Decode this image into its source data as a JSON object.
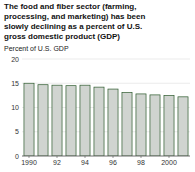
{
  "chart_data": {
    "type": "bar",
    "title": "The food and fiber sector (farming,\nprocessing, and marketing) has been\nslowly declining as a percent of U.S.\ngross domestic product (GDP)",
    "y_label": "Percent of U.S. GDP",
    "categories": [
      "1990",
      null,
      "92",
      null,
      "94",
      null,
      "96",
      null,
      "98",
      null,
      "2000",
      null
    ],
    "values": [
      15.0,
      14.7,
      14.6,
      14.5,
      14.6,
      14.2,
      13.8,
      13.1,
      12.8,
      12.6,
      12.5,
      12.2
    ],
    "color": "#d0d4d0",
    "ylim": [
      0,
      20
    ],
    "yticks": [
      0,
      5,
      10,
      15,
      20
    ],
    "grid": true
  }
}
